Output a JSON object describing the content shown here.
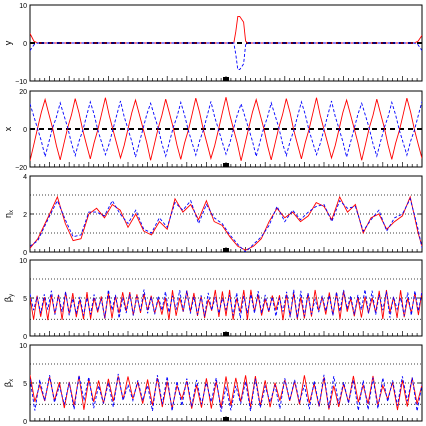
{
  "chart_data": [
    {
      "type": "line",
      "ylabel": "y",
      "ylim": [
        -10,
        10
      ],
      "yticks": [
        "10",
        "0",
        "−10"
      ],
      "grid_lines": [],
      "series": [
        {
          "color": "#ff0000",
          "style": "solid",
          "x": [
            0,
            0.01,
            0.02,
            0.52,
            0.525,
            0.53,
            0.535,
            0.545,
            0.55,
            0.555,
            0.98,
            0.99,
            1
          ],
          "y": [
            2.5,
            0.5,
            0,
            0,
            3,
            7,
            7,
            5.5,
            0.5,
            0,
            0,
            0.5,
            2
          ]
        },
        {
          "color": "#0000ff",
          "style": "dashed",
          "x": [
            0,
            0.01,
            0.02,
            0.52,
            0.525,
            0.53,
            0.535,
            0.545,
            0.55,
            0.555,
            0.98,
            0.99,
            1
          ],
          "y": [
            -2,
            -0.5,
            0,
            0,
            -3,
            -7,
            -7,
            -5.5,
            -0.5,
            0,
            0,
            -0.5,
            -2
          ]
        }
      ]
    },
    {
      "type": "line",
      "ylabel": "x",
      "ylim": [
        -20,
        20
      ],
      "yticks": [
        "20",
        "0",
        "−20"
      ],
      "grid_lines": [],
      "series": [
        {
          "color": "#ff0000",
          "style": "solid",
          "generator": "triangle-wave",
          "amplitude": 16,
          "cycles": 13,
          "phase": 0
        },
        {
          "color": "#0000ff",
          "style": "dashed",
          "generator": "triangle-wave",
          "amplitude": 14,
          "cycles": 13,
          "phase": 0.5
        }
      ]
    },
    {
      "type": "line",
      "ylabel": "η x",
      "ylim": [
        0,
        4
      ],
      "yticks": [
        "4",
        "2",
        "0"
      ],
      "grid_lines": [
        1,
        2,
        3
      ],
      "series": [
        {
          "color": "#ff0000",
          "style": "solid",
          "x": [
            0,
            0.02,
            0.05,
            0.07,
            0.09,
            0.11,
            0.13,
            0.15,
            0.17,
            0.19,
            0.21,
            0.23,
            0.25,
            0.27,
            0.29,
            0.31,
            0.33,
            0.35,
            0.37,
            0.39,
            0.41,
            0.43,
            0.45,
            0.47,
            0.49,
            0.51,
            0.53,
            0.55,
            0.57,
            0.59,
            0.61,
            0.63,
            0.65,
            0.67,
            0.69,
            0.71,
            0.73,
            0.75,
            0.77,
            0.79,
            0.81,
            0.83,
            0.85,
            0.87,
            0.89,
            0.91,
            0.93,
            0.95,
            0.97,
            0.99,
            1
          ],
          "y": [
            0.2,
            0.7,
            2.0,
            2.9,
            1.5,
            0.6,
            0.7,
            2.0,
            2.3,
            1.8,
            2.5,
            2.2,
            1.3,
            2.0,
            1.1,
            0.9,
            1.6,
            1.2,
            2.8,
            2.1,
            2.5,
            1.7,
            2.7,
            1.6,
            1.4,
            0.8,
            0.3,
            0.1,
            0.3,
            0.7,
            1.6,
            2.3,
            1.8,
            2.1,
            1.6,
            1.9,
            2.6,
            2.4,
            1.7,
            2.9,
            2.1,
            2.5,
            1.0,
            1.8,
            2.0,
            1.2,
            1.6,
            1.9,
            2.9,
            1.0,
            0.3
          ]
        },
        {
          "color": "#0000ff",
          "style": "dashed",
          "x": [
            0,
            0.02,
            0.05,
            0.07,
            0.09,
            0.11,
            0.13,
            0.15,
            0.17,
            0.19,
            0.21,
            0.23,
            0.25,
            0.27,
            0.29,
            0.31,
            0.33,
            0.35,
            0.37,
            0.39,
            0.41,
            0.43,
            0.45,
            0.47,
            0.49,
            0.51,
            0.53,
            0.55,
            0.57,
            0.59,
            0.61,
            0.63,
            0.65,
            0.67,
            0.69,
            0.71,
            0.73,
            0.75,
            0.77,
            0.79,
            0.81,
            0.83,
            0.85,
            0.87,
            0.89,
            0.91,
            0.93,
            0.95,
            0.97,
            0.99,
            1
          ],
          "y": [
            0.3,
            0.6,
            1.9,
            2.7,
            1.7,
            0.8,
            0.9,
            2.1,
            2.1,
            1.9,
            2.7,
            2.0,
            1.5,
            2.2,
            1.2,
            1.0,
            1.8,
            1.3,
            2.6,
            2.2,
            2.7,
            1.5,
            2.5,
            1.8,
            1.5,
            0.9,
            0.4,
            0.0,
            0.4,
            0.8,
            1.4,
            2.4,
            1.6,
            2.2,
            1.7,
            2.1,
            2.4,
            2.5,
            1.6,
            2.7,
            2.3,
            2.4,
            1.1,
            1.7,
            2.2,
            1.1,
            1.8,
            2.0,
            2.8,
            1.2,
            0.2
          ]
        }
      ]
    },
    {
      "type": "line",
      "ylabel": "β y",
      "ylim": [
        0,
        10
      ],
      "yticks": [
        "10",
        "5",
        "0"
      ],
      "grid_lines": [
        2.2,
        5,
        7.5
      ],
      "series": [
        {
          "color": "#ff0000",
          "style": "solid",
          "generator": "oscillation",
          "base": 4.1,
          "amplitude": 1.7,
          "cycles": 55,
          "seed": 3
        },
        {
          "color": "#0000ff",
          "style": "dashed",
          "generator": "oscillation",
          "base": 4.2,
          "amplitude": 1.6,
          "cycles": 55,
          "seed": 7
        }
      ]
    },
    {
      "type": "line",
      "ylabel": "β x",
      "ylim": [
        0,
        10
      ],
      "yticks": [
        "10",
        "5",
        "0"
      ],
      "grid_lines": [
        2.2,
        5,
        7.5
      ],
      "series": [
        {
          "color": "#ff0000",
          "style": "solid",
          "generator": "oscillation",
          "base": 3.8,
          "amplitude": 2.0,
          "cycles": 40,
          "seed": 11
        },
        {
          "color": "#0000ff",
          "style": "dashed",
          "generator": "oscillation",
          "base": 3.7,
          "amplitude": 2.1,
          "cycles": 40,
          "seed": 13
        }
      ]
    }
  ],
  "x_marker": {
    "position": 0.5,
    "note": "small filled square on bottom axis of each panel"
  }
}
